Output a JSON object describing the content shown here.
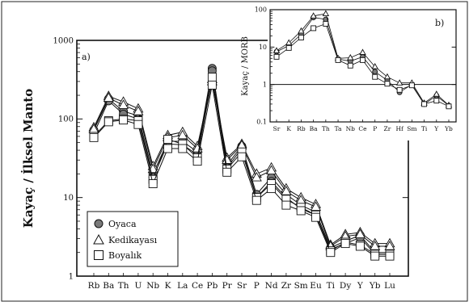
{
  "chart_data": [
    {
      "type": "line",
      "panel_label": "a)",
      "ylabel": "Kayaç / İlksel Manto",
      "yscale": "log",
      "ylim": [
        1,
        1000
      ],
      "yticks": [
        "1",
        "10",
        "100",
        "1000"
      ],
      "categories": [
        "Rb",
        "Ba",
        "Th",
        "U",
        "Nb",
        "K",
        "La",
        "Ce",
        "Pb",
        "Pr",
        "Sr",
        "P",
        "Nd",
        "Zr",
        "Sm",
        "Eu",
        "Ti",
        "Dy",
        "Y",
        "Yb",
        "Lu"
      ],
      "legend_position": "bottom-left",
      "series": [
        {
          "name": "Oyaca",
          "marker": "circle",
          "color": "#7a7a7a",
          "values": [
            72,
            180,
            125,
            110,
            20,
            52,
            52,
            38,
            440,
            26,
            45,
            11,
            18,
            11,
            8,
            6.5,
            2.3,
            2.8,
            3.3,
            2.0,
            2.0
          ]
        },
        {
          "name": "Oyaca",
          "marker": "circle",
          "color": "#7a7a7a",
          "values": [
            65,
            170,
            115,
            100,
            18,
            48,
            47,
            35,
            410,
            24,
            42,
            10,
            16,
            10,
            7.2,
            6.0,
            2.2,
            2.6,
            3.1,
            1.9,
            1.9
          ]
        },
        {
          "name": "Kedikayası",
          "marker": "triangle",
          "color": "#ffffff",
          "values": [
            78,
            195,
            165,
            135,
            25,
            62,
            68,
            45,
            320,
            32,
            48,
            20,
            24,
            13,
            10,
            8.2,
            2.5,
            3.4,
            3.6,
            2.6,
            2.6
          ]
        },
        {
          "name": "Kedikayası",
          "marker": "triangle",
          "color": "#ffffff",
          "values": [
            74,
            185,
            150,
            125,
            23,
            58,
            62,
            42,
            300,
            30,
            46,
            18,
            22,
            12,
            9.2,
            7.6,
            2.4,
            3.2,
            3.4,
            2.4,
            2.4
          ]
        },
        {
          "name": "Boyalık",
          "marker": "square",
          "color": "#ffffff",
          "values": [
            60,
            95,
            100,
            95,
            17,
            55,
            48,
            32,
            340,
            23,
            38,
            10,
            15,
            9.5,
            7.5,
            6.0,
            2.1,
            2.7,
            2.5,
            1.9,
            1.9
          ]
        },
        {
          "name": "Boyalık",
          "marker": "square",
          "color": "#ffffff",
          "values": [
            58,
            92,
            97,
            85,
            15,
            42,
            42,
            29,
            270,
            21,
            33,
            9.2,
            13,
            8.0,
            6.8,
            5.6,
            2.0,
            2.6,
            2.4,
            1.8,
            1.8
          ]
        }
      ]
    },
    {
      "type": "line",
      "panel_label": "b)",
      "ylabel": "Kayaç / MORB",
      "yscale": "log",
      "ylim": [
        0.1,
        100
      ],
      "yticks": [
        "0.1",
        "1",
        "10",
        "100"
      ],
      "reference_line": 1,
      "categories": [
        "Sr",
        "K",
        "Rb",
        "Ba",
        "Th",
        "Ta",
        "Nb",
        "Ce",
        "P",
        "Zr",
        "Hf",
        "Sm",
        "Ti",
        "Y",
        "Yb"
      ],
      "series": [
        {
          "name": "Oyaca",
          "marker": "circle",
          "color": "#7a7a7a",
          "values": [
            7.5,
            11,
            22,
            62,
            55,
            4.8,
            4.2,
            5.5,
            2.2,
            1.3,
            0.62,
            1.0,
            0.3,
            0.5,
            0.27
          ]
        },
        {
          "name": "Kedikayası",
          "marker": "triangle",
          "color": "#ffffff",
          "values": [
            8.0,
            13,
            27,
            68,
            78,
            5.0,
            5.2,
            7.2,
            3.0,
            1.6,
            1.1,
            1.1,
            0.32,
            0.55,
            0.28
          ]
        },
        {
          "name": "Boyalık",
          "marker": "square",
          "color": "#ffffff",
          "values": [
            5.5,
            9.5,
            18,
            32,
            42,
            4.5,
            3.2,
            4.5,
            1.6,
            1.05,
            0.72,
            0.95,
            0.3,
            0.37,
            0.26
          ]
        }
      ]
    }
  ]
}
